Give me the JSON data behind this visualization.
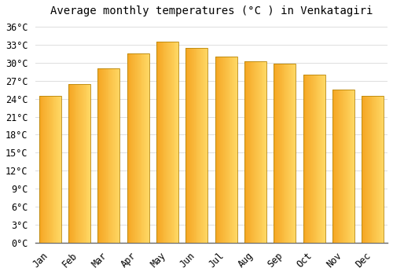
{
  "months": [
    "Jan",
    "Feb",
    "Mar",
    "Apr",
    "May",
    "Jun",
    "Jul",
    "Aug",
    "Sep",
    "Oct",
    "Nov",
    "Dec"
  ],
  "values": [
    24.5,
    26.5,
    29.0,
    31.5,
    33.5,
    32.5,
    31.0,
    30.2,
    29.8,
    28.0,
    25.5,
    24.5
  ],
  "bar_color_left": "#F5A623",
  "bar_color_right": "#FFD966",
  "bar_edge_color": "#B8860B",
  "background_color": "#FFFFFF",
  "title": "Average monthly temperatures (°C ) in Venkatagiri",
  "title_fontsize": 10,
  "tick_fontsize": 8.5,
  "ylim": [
    0,
    37
  ],
  "yticks": [
    0,
    3,
    6,
    9,
    12,
    15,
    18,
    21,
    24,
    27,
    30,
    33,
    36
  ],
  "grid_color": "#DDDDDD",
  "bar_width": 0.75
}
